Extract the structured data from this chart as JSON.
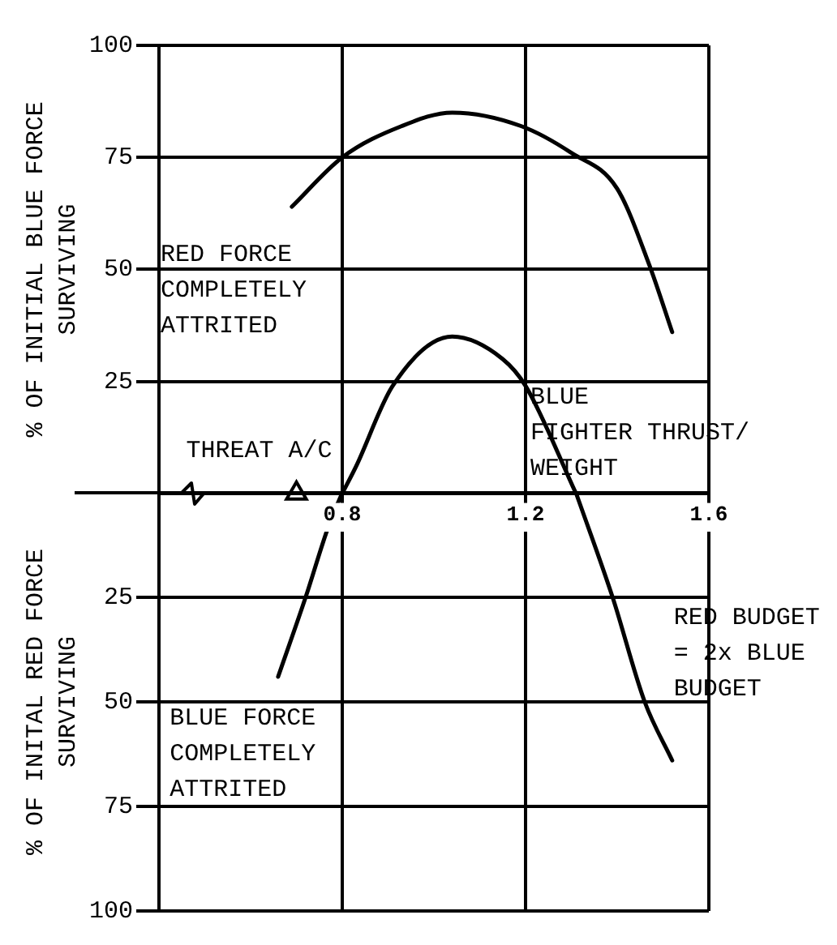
{
  "chart_data": [
    {
      "type": "line",
      "ylabel": "% OF INITIAL BLUE FORCE\nSURVIVING",
      "xlabel": "BLUE\nFIGHTER THRUST/\nWEIGHT",
      "annotations": [
        "RED FORCE\nCOMPLETELY\nATTRITED",
        {
          "text": "THREAT A/C",
          "x": 0.7,
          "y": 0
        }
      ],
      "xlim": [
        0.4,
        1.6
      ],
      "xticks": [
        0.8,
        1.2,
        1.6
      ],
      "ylim": [
        0,
        100
      ],
      "yticks": [
        25,
        50,
        75,
        100
      ],
      "grid": true,
      "legend": false,
      "marker": "none",
      "line_style": "solid",
      "series": [
        {
          "type": "line",
          "color": "#000000",
          "x": [
            0.69,
            0.8,
            0.93,
            1.04,
            1.19,
            1.3,
            1.4,
            1.47,
            1.52
          ],
          "values": [
            64,
            75,
            82,
            85,
            82,
            76,
            68,
            51,
            36
          ]
        },
        {
          "type": "line",
          "color": "#000000",
          "x": [
            0.8,
            0.83,
            0.91,
            1.04,
            1.15,
            1.2,
            1.31
          ],
          "values": [
            0,
            6,
            24,
            35,
            30,
            24,
            0
          ]
        },
        {
          "type": "scatter",
          "color": "#000000",
          "marker": "triangle",
          "x": [
            0.7
          ],
          "values": [
            0
          ]
        }
      ]
    },
    {
      "type": "line",
      "ylabel": "% OF INITAL RED FORCE\nSURVIVING",
      "annotations": [
        "BLUE FORCE\nCOMPLETELY\nATTRITED",
        "RED BUDGET\n= 2x BLUE\nBUDGET"
      ],
      "xlim": [
        0.4,
        1.6
      ],
      "xticks": [
        0.8,
        1.2,
        1.6
      ],
      "ylim": [
        100,
        0
      ],
      "yticks": [
        25,
        50,
        75,
        100
      ],
      "tick_labels": "y",
      "grid": true,
      "legend": false,
      "marker": "none",
      "line_style": "solid",
      "series": [
        {
          "type": "line",
          "color": "#000000",
          "x": [
            0.66,
            0.72,
            0.77,
            0.8
          ],
          "values": [
            44,
            25,
            8,
            0
          ]
        },
        {
          "type": "line",
          "color": "#000000",
          "x": [
            1.31,
            1.39,
            1.46,
            1.52
          ],
          "values": [
            0,
            25,
            50,
            64
          ]
        }
      ]
    }
  ]
}
